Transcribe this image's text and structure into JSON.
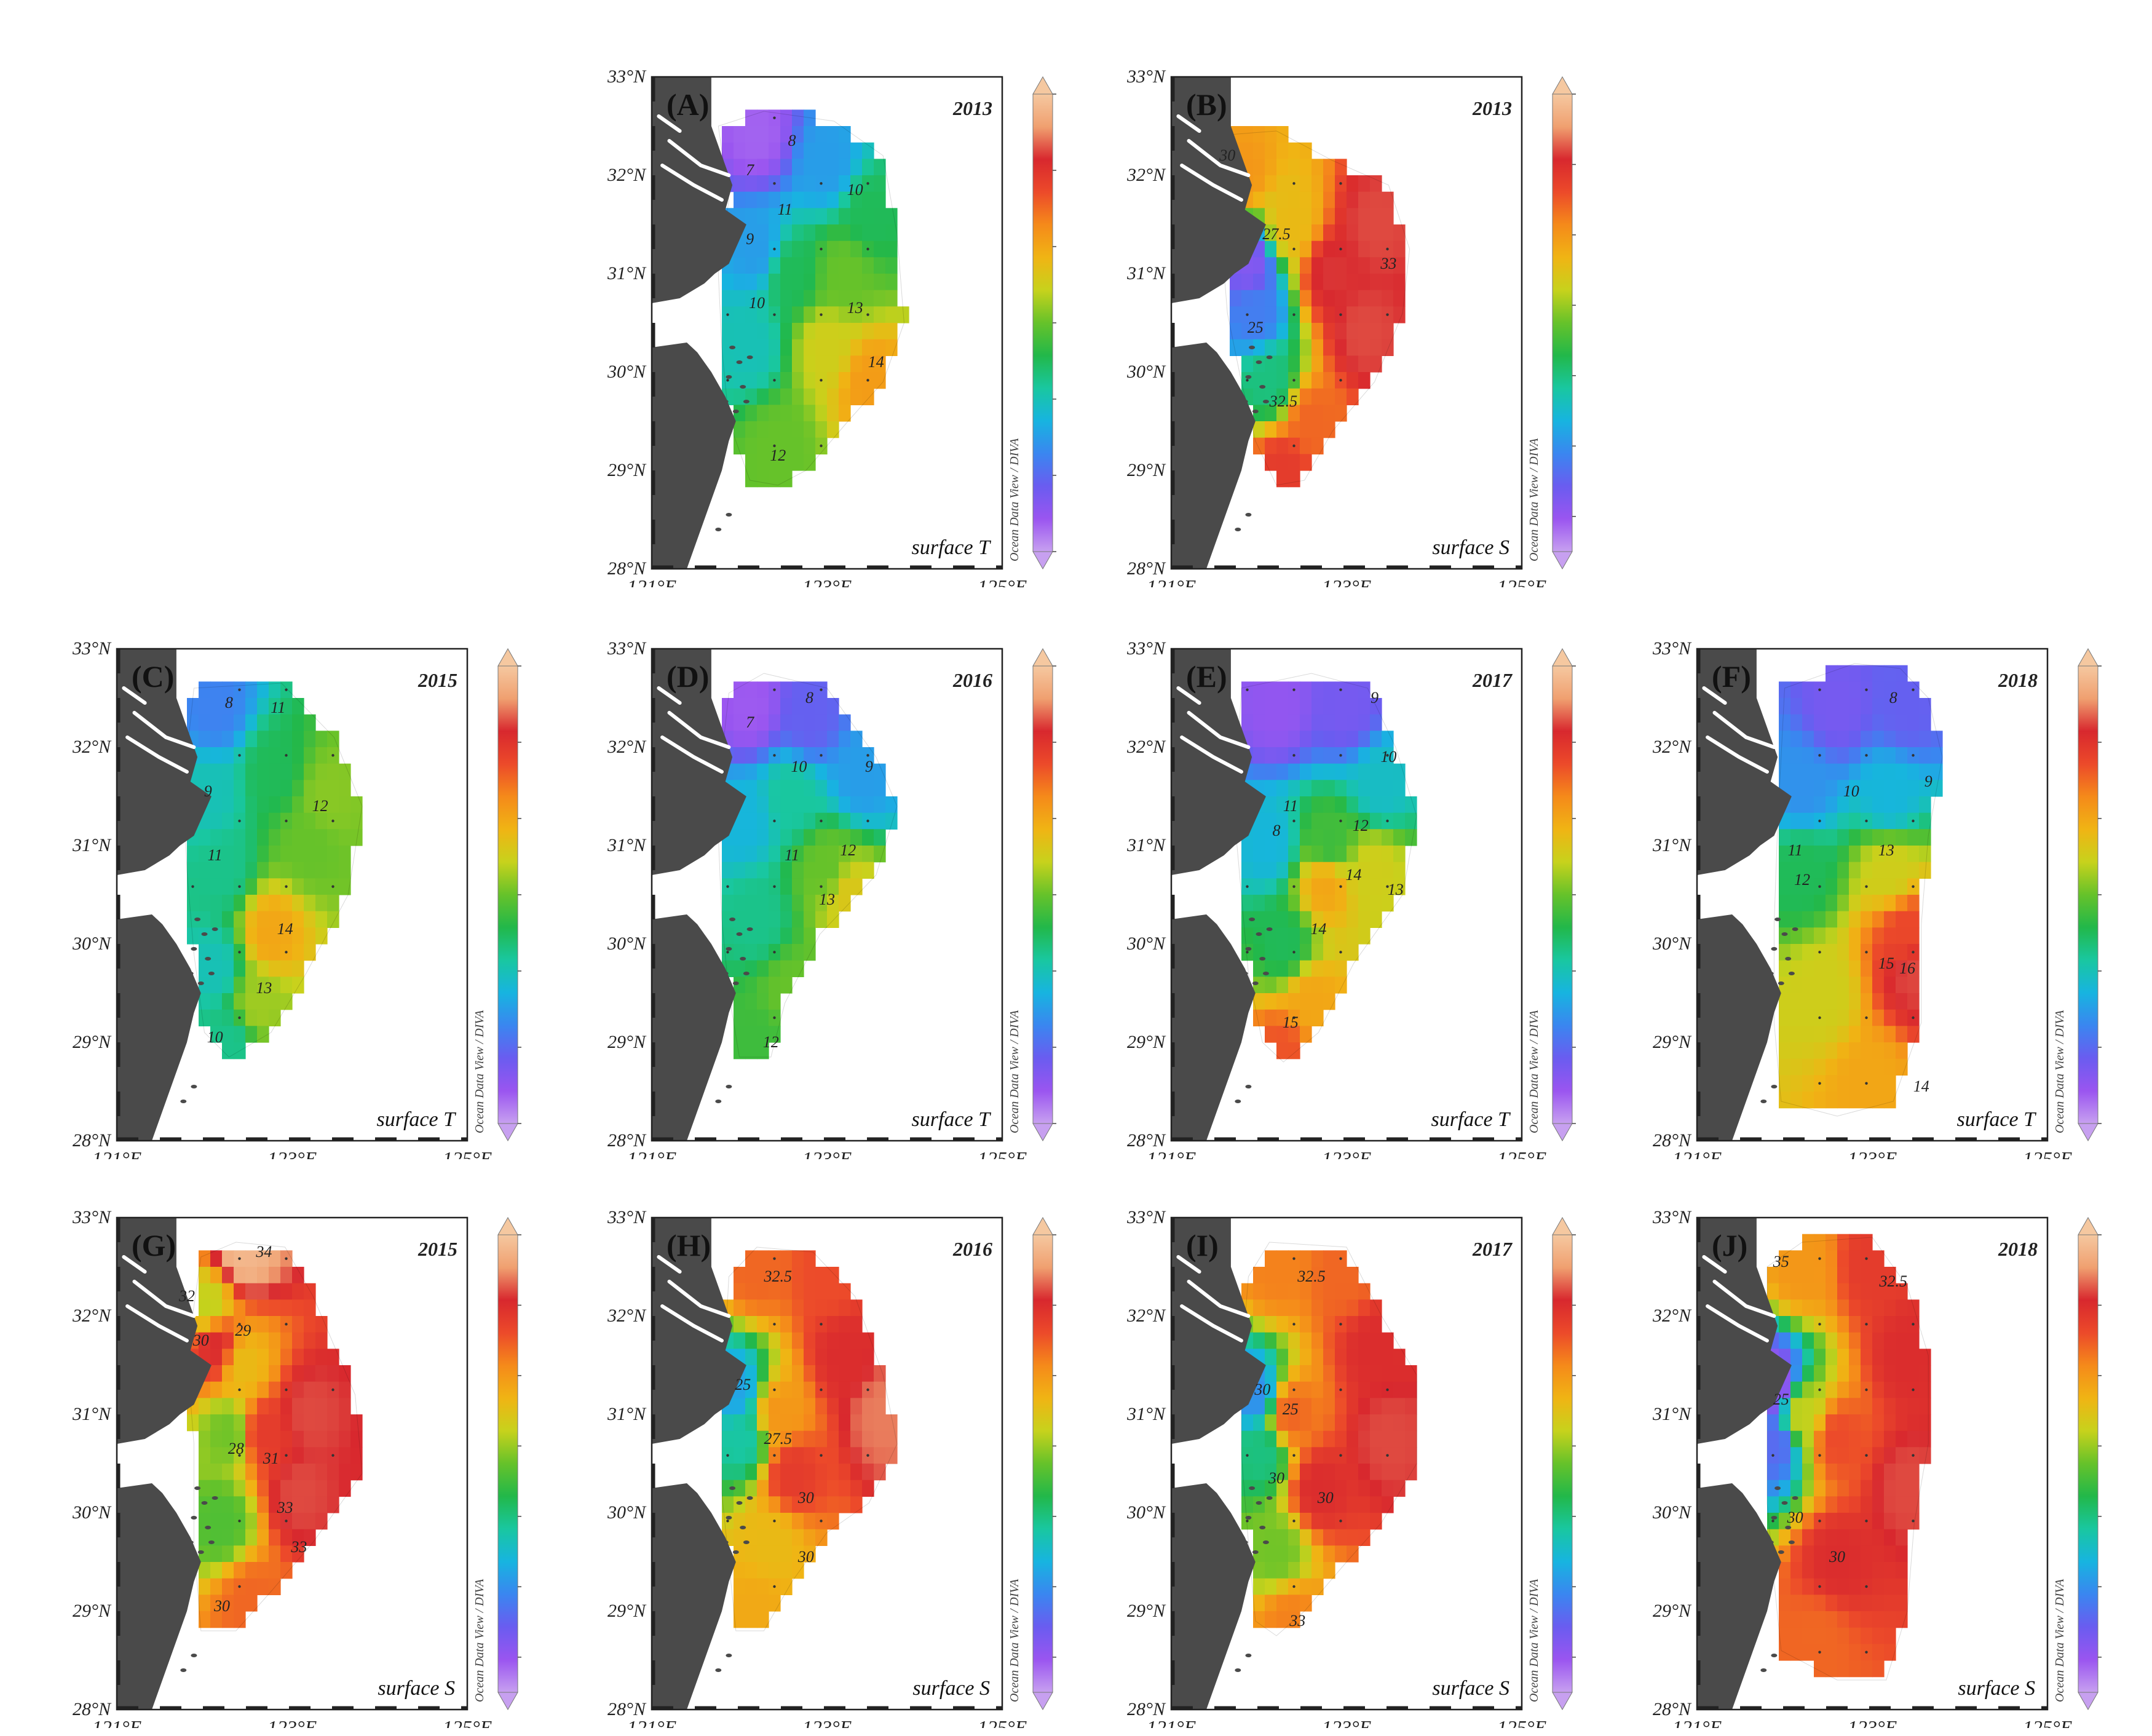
{
  "figure": {
    "lat_ticks": [
      "28°N",
      "29°N",
      "30°N",
      "31°N",
      "32°N",
      "33°N"
    ],
    "lon_ticks": [
      "121°E",
      "123°E",
      "125°E"
    ],
    "credit": "Ocean Data View / DIVA",
    "colorbars": {
      "T": {
        "min": 6,
        "max": 18,
        "ticks": [
          "6",
          "8",
          "10",
          "12",
          "14",
          "16",
          "18"
        ]
      },
      "S": {
        "min": 18.75,
        "max": 35,
        "ticks": [
          "20",
          "22.5",
          "25",
          "27.5",
          "30",
          "32.5",
          "35"
        ]
      }
    },
    "colors": {
      "land": "#4a4a4a",
      "rainbow": [
        "#c7a0f0",
        "#9a55f0",
        "#6a5cf0",
        "#3a86f0",
        "#17b4e0",
        "#19c7a0",
        "#22b84a",
        "#66c22a",
        "#c7d21c",
        "#f0b414",
        "#f58a1a",
        "#ec4a2a",
        "#d8282e",
        "#f0a070",
        "#f5c8a0"
      ]
    }
  },
  "panels": [
    {
      "id": "A",
      "letter": "(A)",
      "year": "2013",
      "var": "T",
      "label": "surface T",
      "contours": [
        "7",
        "8",
        "9",
        "10",
        "10",
        "11",
        "12",
        "13",
        "14"
      ],
      "stats": {
        "min": 6.5,
        "max": 14.3
      }
    },
    {
      "id": "B",
      "letter": "(B)",
      "year": "2013",
      "var": "S",
      "label": "surface S",
      "contours": [
        "30",
        "27.5",
        "25",
        "32.5",
        "33"
      ],
      "stats": {
        "min": 20,
        "max": 33.5
      }
    },
    {
      "id": "C",
      "letter": "(C)",
      "year": "2015",
      "var": "T",
      "label": "surface T",
      "contours": [
        "8",
        "9",
        "11",
        "11",
        "12",
        "13",
        "14",
        "10"
      ],
      "stats": {
        "min": 8,
        "max": 14.2
      }
    },
    {
      "id": "D",
      "letter": "(D)",
      "year": "2016",
      "var": "T",
      "label": "surface T",
      "contours": [
        "7",
        "8",
        "9",
        "10",
        "11",
        "12",
        "13",
        "12"
      ],
      "stats": {
        "min": 6.8,
        "max": 13.3
      }
    },
    {
      "id": "E",
      "letter": "(E)",
      "year": "2017",
      "var": "T",
      "label": "surface T",
      "contours": [
        "8",
        "9",
        "10",
        "11",
        "12",
        "13",
        "14",
        "14",
        "15"
      ],
      "stats": {
        "min": 7,
        "max": 15.5
      }
    },
    {
      "id": "F",
      "letter": "(F)",
      "year": "2018",
      "var": "T",
      "label": "surface T",
      "contours": [
        "8",
        "9",
        "10",
        "11",
        "12",
        "13",
        "15",
        "16",
        "14"
      ],
      "stats": {
        "min": 8,
        "max": 16.5
      }
    },
    {
      "id": "G",
      "letter": "(G)",
      "year": "2015",
      "var": "S",
      "label": "surface S",
      "contours": [
        "34",
        "32",
        "30",
        "29",
        "31",
        "28",
        "33",
        "30",
        "33"
      ],
      "stats": {
        "min": 26,
        "max": 35
      }
    },
    {
      "id": "H",
      "letter": "(H)",
      "year": "2016",
      "var": "S",
      "label": "surface S",
      "contours": [
        "32.5",
        "25",
        "27.5",
        "30",
        "30"
      ],
      "stats": {
        "min": 22.5,
        "max": 33.5
      }
    },
    {
      "id": "I",
      "letter": "(I)",
      "year": "2017",
      "var": "S",
      "label": "surface S",
      "contours": [
        "32.5",
        "30",
        "25",
        "30",
        "30",
        "33"
      ],
      "stats": {
        "min": 22,
        "max": 33.5
      }
    },
    {
      "id": "J",
      "letter": "(J)",
      "year": "2018",
      "var": "S",
      "label": "surface S",
      "contours": [
        "35",
        "32.5",
        "25",
        "30",
        "30"
      ],
      "stats": {
        "min": 19.5,
        "max": 33.8
      }
    }
  ]
}
